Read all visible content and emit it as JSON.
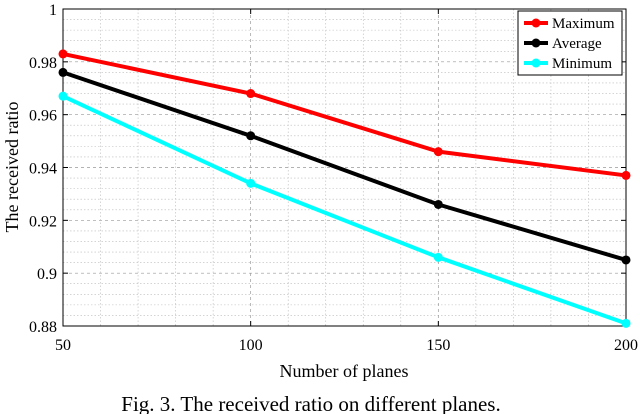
{
  "chart_data": {
    "type": "line",
    "title": "",
    "xlabel": "Number of planes",
    "ylabel": "The received ratio",
    "x": [
      50,
      100,
      150,
      200
    ],
    "xlim": [
      50,
      200
    ],
    "ylim": [
      0.88,
      1
    ],
    "xticks": [
      "50",
      "100",
      "150",
      "200"
    ],
    "yticks": [
      "0.88",
      "0.9",
      "0.92",
      "0.94",
      "0.96",
      "0.98",
      "1"
    ],
    "grid": true,
    "minor_grid": true,
    "legend_position": "top-right",
    "series": [
      {
        "name": "Maximum",
        "color": "#ff0000",
        "values": [
          0.983,
          0.968,
          0.946,
          0.937
        ]
      },
      {
        "name": "Average",
        "color": "#000000",
        "values": [
          0.976,
          0.952,
          0.926,
          0.905
        ]
      },
      {
        "name": "Minimum",
        "color": "#00ffff",
        "values": [
          0.967,
          0.934,
          0.906,
          0.881
        ]
      }
    ]
  },
  "caption": "Fig. 3. The received ratio on different planes."
}
